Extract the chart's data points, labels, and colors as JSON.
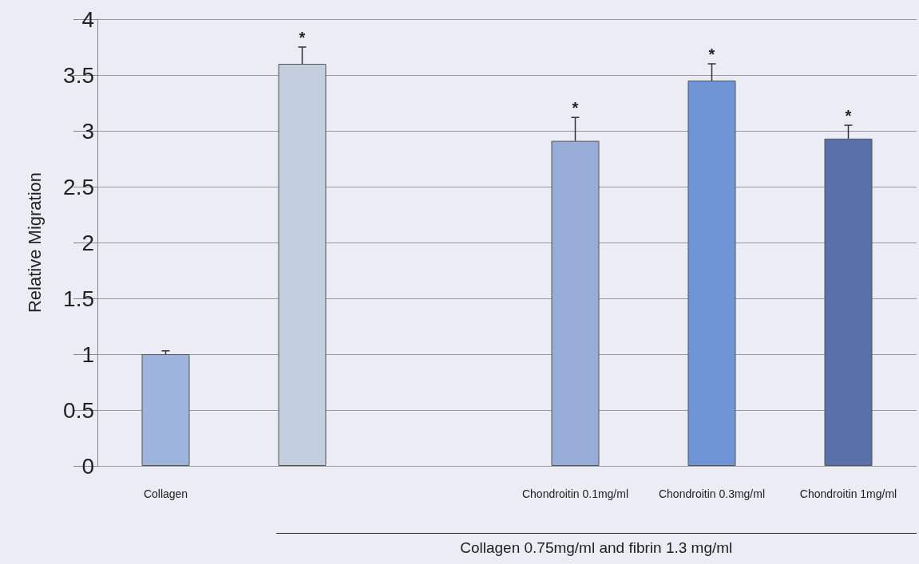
{
  "chart_data": {
    "type": "bar",
    "ylabel": "Relative Migration",
    "categories": [
      "Collagen",
      null,
      null,
      "Chondroitin 0.1mg/ml",
      "Chondroitin 0.3mg/ml",
      "Chondroitin 1mg/ml"
    ],
    "values": [
      1.0,
      3.6,
      null,
      2.91,
      3.45,
      2.93
    ],
    "errors": [
      0.03,
      0.15,
      null,
      0.21,
      0.15,
      0.12
    ],
    "value_labels": [
      null,
      "*",
      null,
      "*",
      "*",
      "*"
    ],
    "colors": [
      "#9db5dc",
      "#c3cede",
      null,
      "#98acd8",
      "#6f95d6",
      "#5a70aa"
    ],
    "ylim": [
      0,
      4
    ],
    "yticks": [
      0,
      0.5,
      1,
      1.5,
      2,
      2.5,
      3,
      3.5,
      4
    ],
    "grid": "y",
    "annotations": [
      "Collagen 0.75mg/ml and fibrin 1.3 mg/ml"
    ]
  }
}
